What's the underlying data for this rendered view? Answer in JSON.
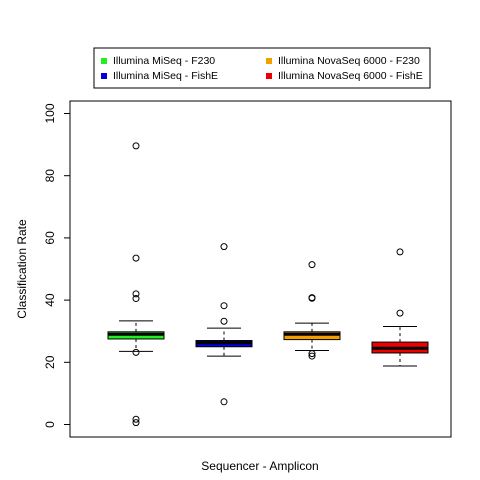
{
  "chart_data": {
    "type": "box",
    "title": "",
    "xlabel": "Sequencer - Amplicon",
    "ylabel": "Classification Rate",
    "ylim": [
      0,
      100
    ],
    "yticks": [
      0,
      20,
      40,
      60,
      80,
      100
    ],
    "legend_position": "top",
    "grid": false,
    "series": [
      {
        "name": "Illumina MiSeq - F230",
        "color": "#22ee22",
        "whisker_low": 23.5,
        "q1": 27.5,
        "median": 29.0,
        "q3": 29.8,
        "whisker_high": 33.3,
        "outliers": [
          89.6,
          53.5,
          42.0,
          40.5,
          23.2,
          1.7,
          0.6
        ]
      },
      {
        "name": "Illumina MiSeq - FishE",
        "color": "#0000dd",
        "whisker_low": 22.0,
        "q1": 25.0,
        "median": 26.3,
        "q3": 27.0,
        "whisker_high": 31.0,
        "outliers": [
          57.2,
          38.2,
          33.2,
          7.3
        ]
      },
      {
        "name": "Illumina NovaSeq 6000 - F230",
        "color": "#f2a000",
        "whisker_low": 23.8,
        "q1": 27.3,
        "median": 29.0,
        "q3": 29.8,
        "whisker_high": 32.6,
        "outliers": [
          51.4,
          40.8,
          40.6,
          22.8,
          22.0
        ]
      },
      {
        "name": "Illumina NovaSeq 6000 - FishE",
        "color": "#ee0000",
        "whisker_low": 18.8,
        "q1": 23.0,
        "median": 24.5,
        "q3": 26.5,
        "whisker_high": 31.5,
        "outliers": [
          55.5,
          35.8
        ]
      }
    ]
  }
}
